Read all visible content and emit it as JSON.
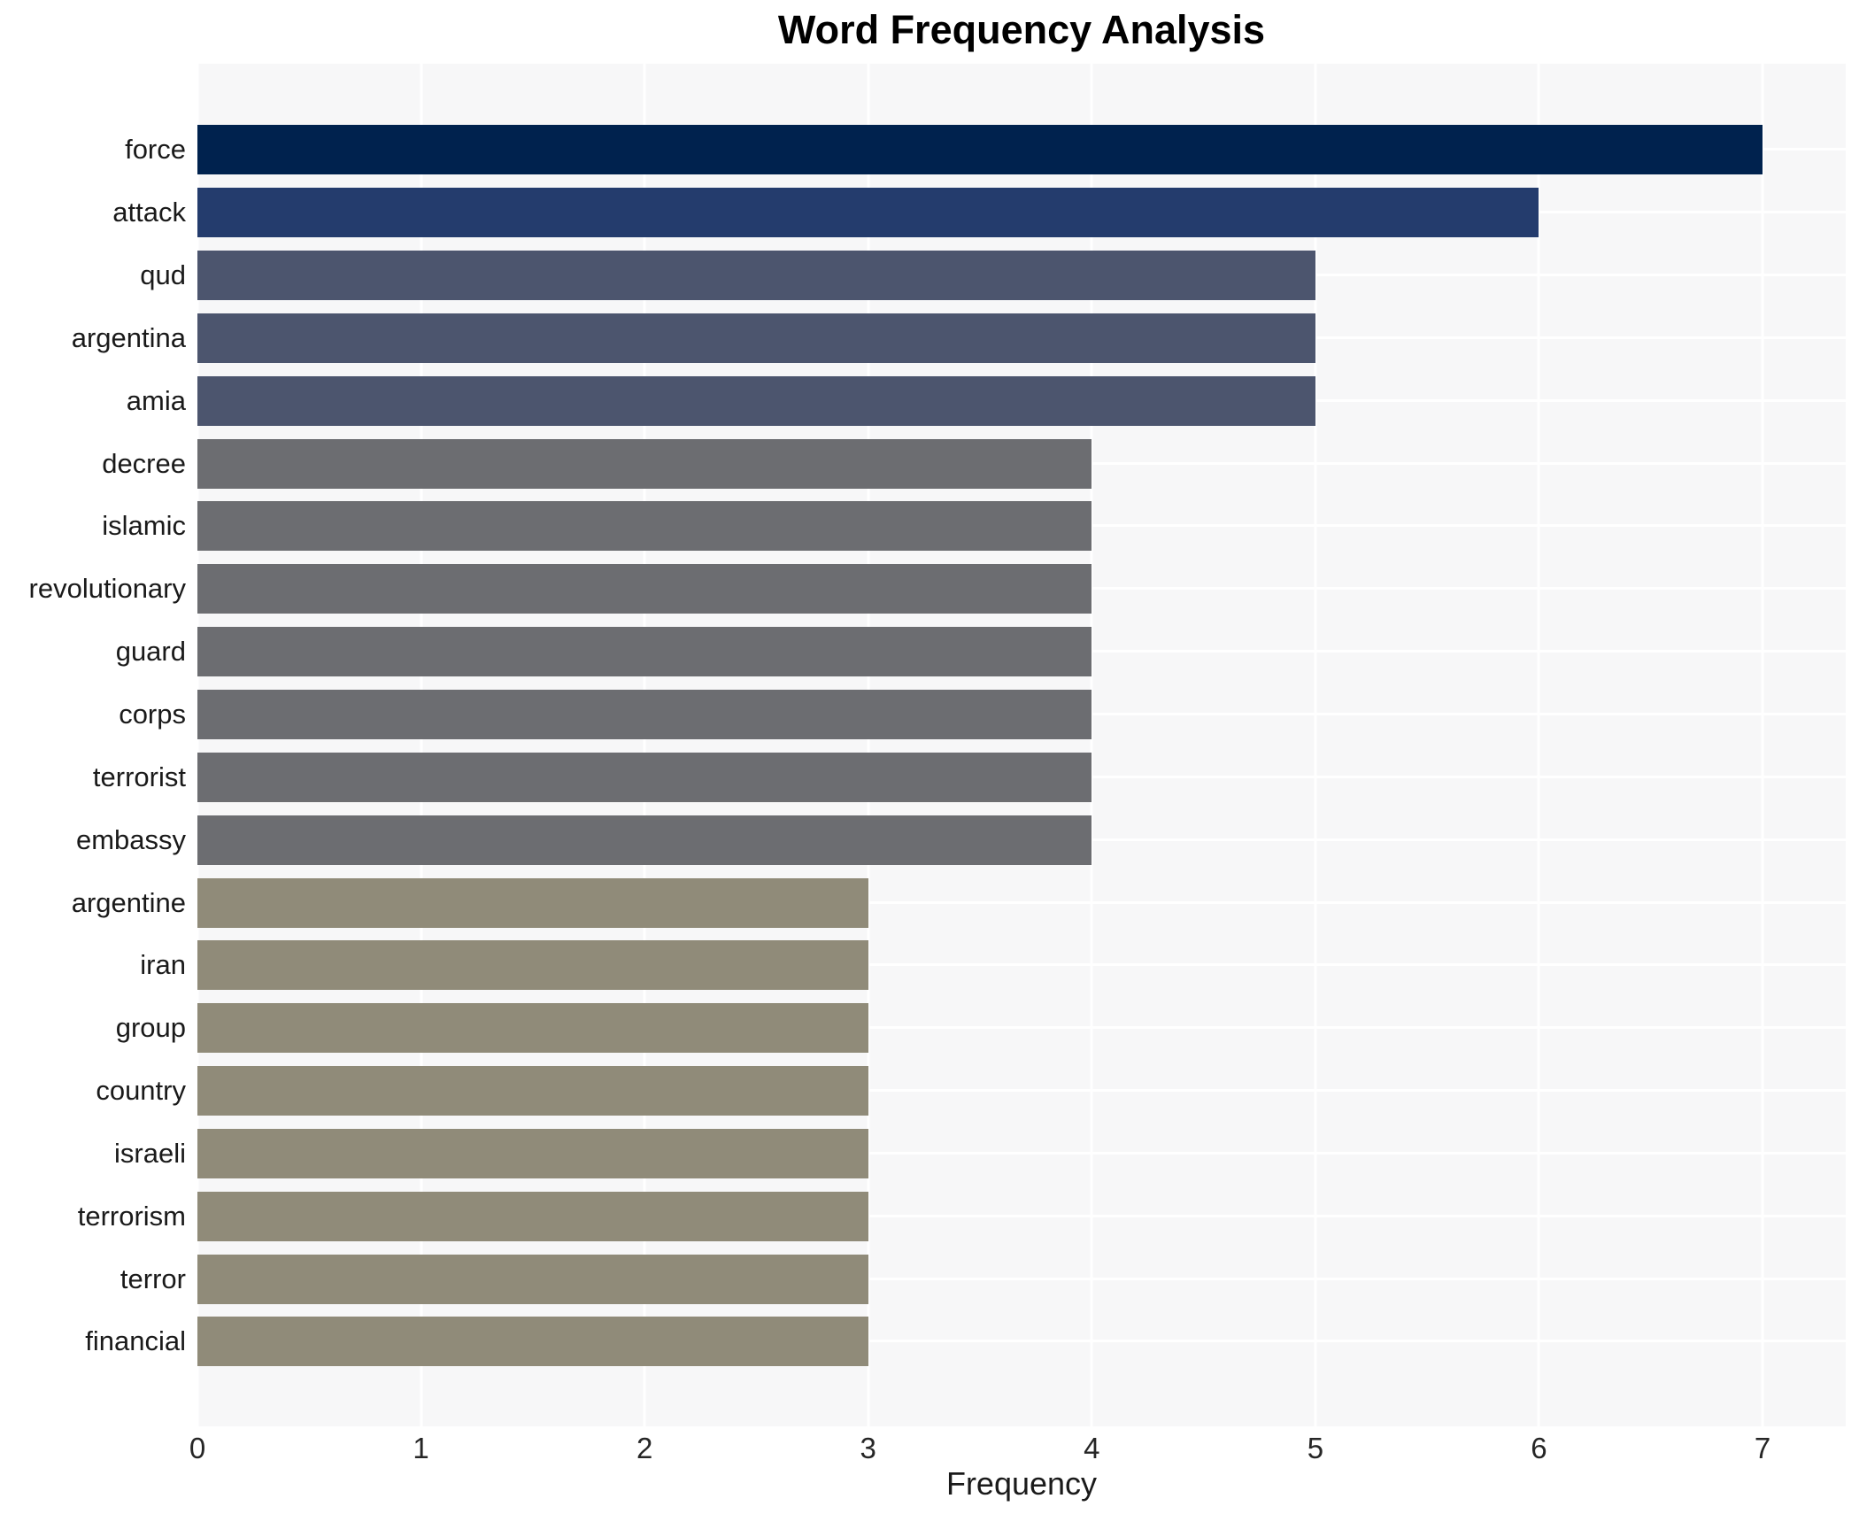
{
  "chart_data": {
    "type": "bar",
    "orientation": "horizontal",
    "title": "Word Frequency Analysis",
    "xlabel": "Frequency",
    "ylabel": "",
    "xlim": [
      0,
      7
    ],
    "xticks": [
      0,
      1,
      2,
      3,
      4,
      5,
      6,
      7
    ],
    "grid": "on",
    "legend": "none",
    "categories": [
      "force",
      "attack",
      "qud",
      "argentina",
      "amia",
      "decree",
      "islamic",
      "revolutionary",
      "guard",
      "corps",
      "terrorist",
      "embassy",
      "argentine",
      "iran",
      "group",
      "country",
      "israeli",
      "terrorism",
      "terror",
      "financial"
    ],
    "values": [
      7,
      6,
      5,
      5,
      5,
      4,
      4,
      4,
      4,
      4,
      4,
      4,
      3,
      3,
      3,
      3,
      3,
      3,
      3,
      3
    ],
    "bar_colors": [
      "#00224e",
      "#243c6d",
      "#4c556e",
      "#4c556e",
      "#4c556e",
      "#6c6d71",
      "#6c6d71",
      "#6c6d71",
      "#6c6d71",
      "#6c6d71",
      "#6c6d71",
      "#6c6d71",
      "#908b79",
      "#908b79",
      "#908b79",
      "#908b79",
      "#908b79",
      "#908b79",
      "#908b79",
      "#908b79"
    ]
  },
  "style": {
    "plot_background": "#f7f7f8",
    "grid_color": "#ffffff",
    "title_color": "#000000",
    "tick_color": "#262626"
  }
}
